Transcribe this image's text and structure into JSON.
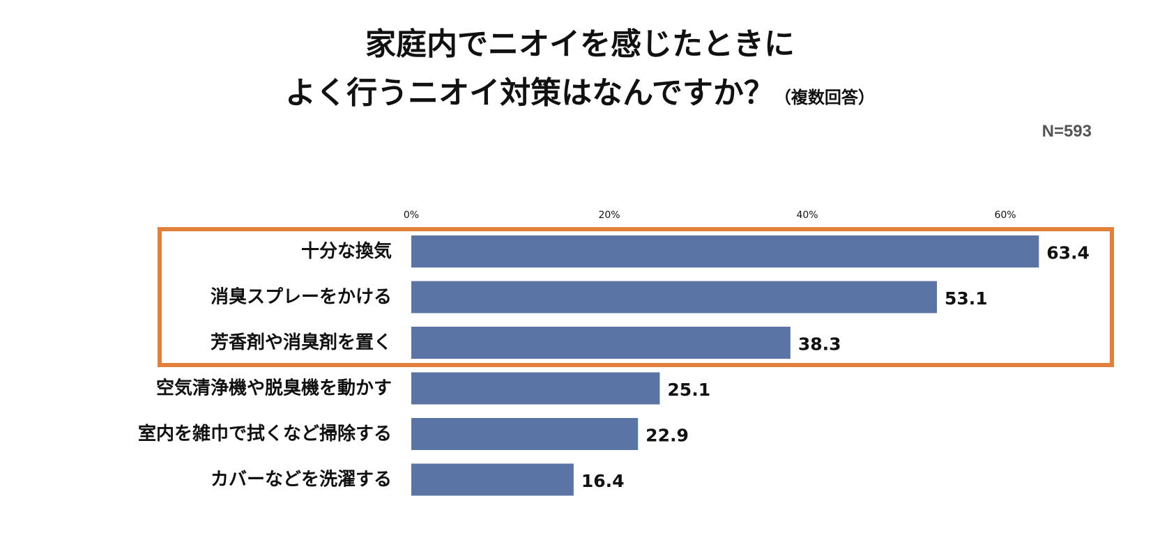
{
  "title": {
    "line1": "家庭内でニオイを感じたときに",
    "line2": "よく行うニオイ対策はなんですか？",
    "note": "（複数回答）"
  },
  "sample_size": "N=593",
  "colors": {
    "bar": "#5B74A6",
    "highlight_box": "#E0803A",
    "text": "#111111"
  },
  "chart_data": {
    "type": "bar",
    "orientation": "horizontal",
    "categories": [
      "十分な換気",
      "消臭スプレーをかける",
      "芳香剤や消臭剤を置く",
      "空気清浄機や脱臭機を動かす",
      "室内を雑巾で拭くなど掃除する",
      "カバーなどを洗濯する"
    ],
    "values": [
      63.4,
      53.1,
      38.3,
      25.1,
      22.9,
      16.4
    ],
    "value_labels": [
      "63.4",
      "53.1",
      "38.3",
      "25.1",
      "22.9",
      "16.4"
    ],
    "x_ticks": [
      0,
      20,
      40,
      60
    ],
    "x_tick_labels": [
      "0%",
      "20%",
      "40%",
      "60%"
    ],
    "xlim": [
      0,
      70
    ],
    "grid": false,
    "highlighted_categories": [
      0,
      1,
      2
    ]
  }
}
